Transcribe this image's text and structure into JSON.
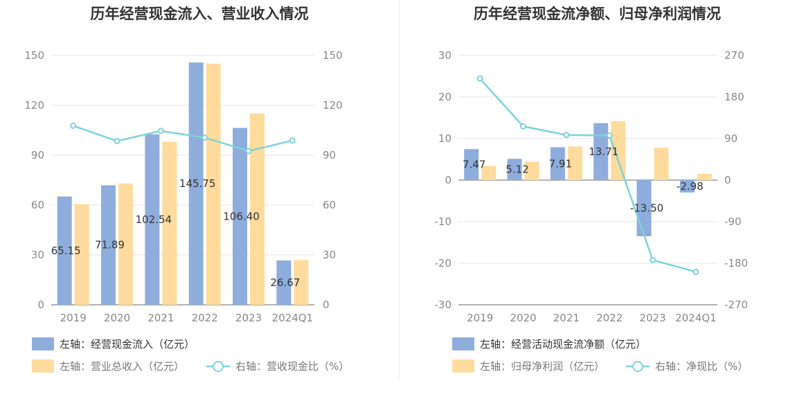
{
  "chart_data": [
    {
      "type": "bar",
      "title": "历年经营现金流入、营业收入情况",
      "categories": [
        "2019",
        "2020",
        "2021",
        "2022",
        "2023",
        "2024Q1"
      ],
      "series": [
        {
          "name": "左轴：经营现金流入（亿元）",
          "axis": "left",
          "type": "bar",
          "color": "#8eaddc",
          "values": [
            65.15,
            71.89,
            102.54,
            145.75,
            106.4,
            26.67
          ],
          "labels": [
            "65.15",
            "71.89",
            "102.54",
            "145.75",
            "106.40",
            "26.67"
          ]
        },
        {
          "name": "左轴：营业总收入（亿元）",
          "axis": "left",
          "type": "bar",
          "color": "#ffdb9e",
          "values": [
            60.5,
            73,
            98,
            145,
            115,
            27
          ]
        },
        {
          "name": "右轴：营收现金比（%）",
          "axis": "right",
          "type": "line",
          "color": "#7dd3d8",
          "values": [
            107.7,
            98.5,
            104.6,
            100.5,
            92.5,
            98.8
          ]
        }
      ],
      "left_axis": {
        "min": 0,
        "max": 150,
        "ticks": [
          "0",
          "30",
          "60",
          "90",
          "120",
          "150"
        ]
      },
      "right_axis": {
        "min": 0,
        "max": 150,
        "ticks": [
          "0",
          "30",
          "60",
          "90",
          "120",
          "150"
        ]
      },
      "grid": true
    },
    {
      "type": "bar",
      "title": "历年经营现金流净额、归母净利润情况",
      "categories": [
        "2019",
        "2020",
        "2021",
        "2022",
        "2023",
        "2024Q1"
      ],
      "series": [
        {
          "name": "左轴：经营活动现金流净额（亿元）",
          "axis": "left",
          "type": "bar",
          "color": "#8eaddc",
          "values": [
            7.47,
            5.12,
            7.91,
            13.71,
            -13.5,
            -2.98
          ],
          "labels": [
            "7.47",
            "5.12",
            "7.91",
            "13.71",
            "-13.50",
            "-2.98"
          ]
        },
        {
          "name": "左轴：归母净利润（亿元）",
          "axis": "left",
          "type": "bar",
          "color": "#ffdb9e",
          "values": [
            3.4,
            4.4,
            8.1,
            14.2,
            7.8,
            1.5
          ]
        },
        {
          "name": "右轴：净现比（%）",
          "axis": "right",
          "type": "line",
          "color": "#7dd3d8",
          "values": [
            219.7,
            116.4,
            97.7,
            96.6,
            -173.1,
            -198.7
          ]
        }
      ],
      "left_axis": {
        "min": -30,
        "max": 30,
        "ticks": [
          "-30",
          "-20",
          "-10",
          "0",
          "10",
          "20",
          "30"
        ]
      },
      "right_axis": {
        "min": -270,
        "max": 270,
        "ticks": [
          "-270",
          "-180",
          "-90",
          "0",
          "90",
          "180",
          "270"
        ]
      },
      "grid": true
    }
  ]
}
